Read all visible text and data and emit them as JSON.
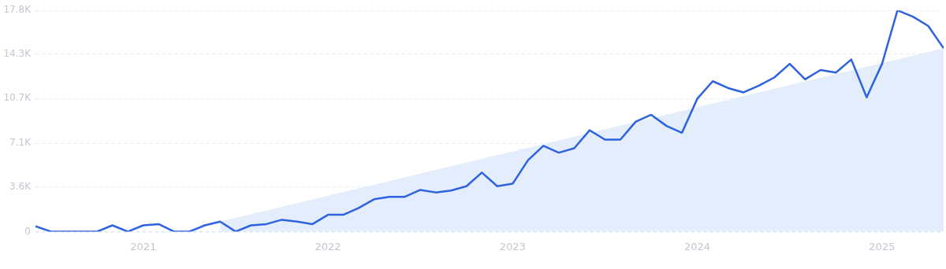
{
  "chart_data": {
    "type": "line",
    "x": [
      "2020-06",
      "2020-07",
      "2020-08",
      "2020-09",
      "2020-10",
      "2020-11",
      "2020-12",
      "2021-01",
      "2021-02",
      "2021-03",
      "2021-04",
      "2021-05",
      "2021-06",
      "2021-07",
      "2021-08",
      "2021-09",
      "2021-10",
      "2021-11",
      "2021-12",
      "2022-01",
      "2022-02",
      "2022-03",
      "2022-04",
      "2022-05",
      "2022-06",
      "2022-07",
      "2022-08",
      "2022-09",
      "2022-10",
      "2022-11",
      "2022-12",
      "2023-01",
      "2023-02",
      "2023-03",
      "2023-04",
      "2023-05",
      "2023-06",
      "2023-07",
      "2023-08",
      "2023-09",
      "2023-10",
      "2023-11",
      "2023-12",
      "2024-01",
      "2024-02",
      "2024-03",
      "2024-04",
      "2024-05",
      "2024-06",
      "2024-07",
      "2024-08",
      "2024-09",
      "2024-10",
      "2024-11",
      "2024-12",
      "2025-01",
      "2025-02",
      "2025-03",
      "2025-04",
      "2025-05"
    ],
    "series": [
      {
        "type": "area",
        "color": "#e3edfb",
        "x": [
          "2021-06",
          "2025-05"
        ],
        "values": [
          800,
          14750
        ]
      },
      {
        "type": "line",
        "color": "#2f62e0",
        "values": [
          430,
          0,
          0,
          0,
          0,
          500,
          0,
          500,
          600,
          0,
          0,
          500,
          800,
          0,
          500,
          600,
          950,
          800,
          600,
          1350,
          1350,
          1900,
          2600,
          2800,
          2800,
          3350,
          3150,
          3300,
          3650,
          4750,
          3650,
          3850,
          5750,
          6900,
          6350,
          6700,
          8150,
          7400,
          7400,
          8850,
          9400,
          8500,
          7950,
          10700,
          12100,
          11550,
          11200,
          11750,
          12400,
          13500,
          12250,
          13000,
          12800,
          13850,
          10800,
          13500,
          17800,
          17300,
          16550,
          14750
        ]
      }
    ],
    "xlim": [
      "2020-06",
      "2025-05"
    ],
    "xticks": [
      {
        "value": "2021-01",
        "label": "2021"
      },
      {
        "value": "2022-01",
        "label": "2022"
      },
      {
        "value": "2023-01",
        "label": "2023"
      },
      {
        "value": "2024-01",
        "label": "2024"
      },
      {
        "value": "2025-01",
        "label": "2025"
      }
    ],
    "ylim": [
      0,
      17800
    ],
    "yticks": [
      {
        "value": 0,
        "label": "0"
      },
      {
        "value": 3600,
        "label": "3.6K"
      },
      {
        "value": 7100,
        "label": "7.1K"
      },
      {
        "value": 10700,
        "label": "10.7K"
      },
      {
        "value": 14300,
        "label": "14.3K"
      },
      {
        "value": 17800,
        "label": "17.8K"
      }
    ],
    "grid": "y",
    "legend": false,
    "marker": "none"
  }
}
